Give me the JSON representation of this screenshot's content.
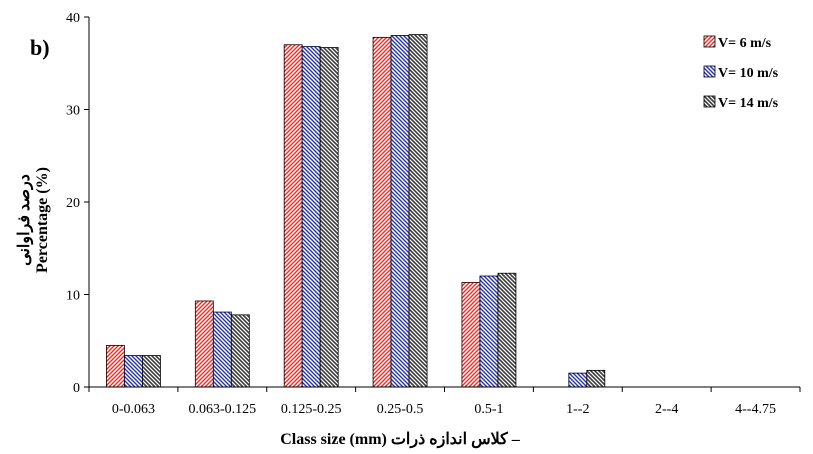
{
  "chart_data": {
    "type": "bar",
    "panel_label": "b)",
    "categories": [
      "0-0.063",
      "0.063-0.125",
      "0.125-0.25",
      "0.25-0.5",
      "0.5-1",
      "1--2",
      "2--4",
      "4--4.75"
    ],
    "series": [
      {
        "name": "V= 6 m/s",
        "values": [
          4.5,
          9.3,
          37.0,
          37.8,
          11.3,
          0,
          0,
          0
        ],
        "color": "#e0302a",
        "pattern": "diagonal-up"
      },
      {
        "name": "V= 10 m/s",
        "values": [
          3.4,
          8.1,
          36.8,
          38.0,
          12.0,
          1.5,
          0,
          0
        ],
        "color": "#1f2fd6",
        "pattern": "diagonal-down"
      },
      {
        "name": "V= 14 m/s",
        "values": [
          3.4,
          7.8,
          36.7,
          38.1,
          12.3,
          1.8,
          0,
          0
        ],
        "color": "#3a3a3a",
        "pattern": "diagonal-down-dense"
      }
    ],
    "ylim": [
      0,
      40
    ],
    "yticks": [
      0,
      10,
      20,
      30,
      40
    ],
    "ylabel": "Percentage (%)",
    "ylabel_persian": "درصد فراوانی",
    "xlabel": "Class size (mm)",
    "xlabel_persian": "کلاس اندازه ذرات –",
    "legend_position": "top-right",
    "grid": false
  }
}
